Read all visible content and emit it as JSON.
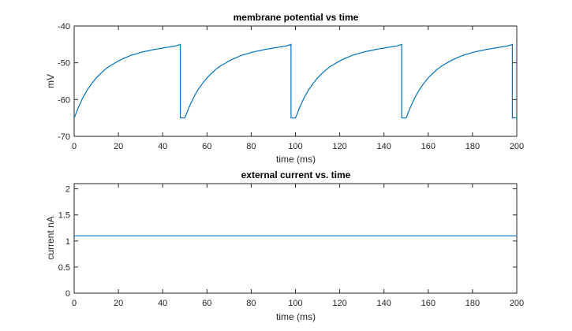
{
  "chart_data": [
    {
      "type": "line",
      "title": "membrane potential vs time",
      "xlabel": "time (ms)",
      "ylabel": "mV",
      "xlim": [
        0,
        200
      ],
      "ylim": [
        -70,
        -40
      ],
      "xticks": [
        0,
        20,
        40,
        60,
        80,
        100,
        120,
        140,
        160,
        180,
        200
      ],
      "yticks": [
        -70,
        -60,
        -50,
        -40
      ],
      "grid": false,
      "color": "#0072BD",
      "series": [
        {
          "x": [
            0,
            2,
            4,
            6,
            8,
            10,
            12,
            14,
            16,
            18,
            20,
            22,
            24,
            26,
            28,
            30,
            32,
            34,
            36,
            38,
            40,
            42,
            44,
            46,
            48,
            48,
            50,
            50,
            52,
            54,
            56,
            58,
            60,
            62,
            64,
            66,
            68,
            70,
            72,
            74,
            76,
            78,
            80,
            82,
            84,
            86,
            88,
            90,
            92,
            94,
            96,
            98,
            98,
            100,
            100,
            102,
            104,
            106,
            108,
            110,
            112,
            114,
            116,
            118,
            120,
            122,
            124,
            126,
            128,
            130,
            132,
            134,
            136,
            138,
            140,
            142,
            144,
            146,
            148,
            148,
            150,
            150,
            152,
            154,
            156,
            158,
            160,
            162,
            164,
            166,
            168,
            170,
            172,
            174,
            176,
            178,
            180,
            182,
            184,
            186,
            188,
            190,
            192,
            194,
            196,
            198,
            198,
            200
          ],
          "y": [
            -65.0,
            -62.0,
            -59.4,
            -57.3,
            -55.6,
            -54.1,
            -52.9,
            -51.8,
            -50.9,
            -50.2,
            -49.5,
            -48.9,
            -48.4,
            -47.9,
            -47.6,
            -47.2,
            -46.9,
            -46.7,
            -46.4,
            -46.2,
            -46.0,
            -45.8,
            -45.6,
            -45.4,
            -45.0,
            -65.0,
            -65.0,
            -65.0,
            -62.0,
            -59.4,
            -57.3,
            -55.6,
            -54.1,
            -52.9,
            -51.8,
            -50.9,
            -50.2,
            -49.5,
            -48.9,
            -48.4,
            -47.9,
            -47.6,
            -47.2,
            -46.9,
            -46.7,
            -46.4,
            -46.2,
            -46.0,
            -45.8,
            -45.6,
            -45.4,
            -45.0,
            -65.0,
            -65.0,
            -65.0,
            -62.0,
            -59.4,
            -57.3,
            -55.6,
            -54.1,
            -52.9,
            -51.8,
            -50.9,
            -50.2,
            -49.5,
            -48.9,
            -48.4,
            -47.9,
            -47.6,
            -47.2,
            -46.9,
            -46.7,
            -46.4,
            -46.2,
            -46.0,
            -45.8,
            -45.6,
            -45.4,
            -45.0,
            -65.0,
            -65.0,
            -65.0,
            -62.0,
            -59.4,
            -57.3,
            -55.6,
            -54.1,
            -52.9,
            -51.8,
            -50.9,
            -50.2,
            -49.5,
            -48.9,
            -48.4,
            -47.9,
            -47.6,
            -47.2,
            -46.9,
            -46.7,
            -46.4,
            -46.2,
            -46.0,
            -45.8,
            -45.6,
            -45.4,
            -45.0,
            -65.0,
            -65.0
          ]
        }
      ]
    },
    {
      "type": "line",
      "title": "external current vs. time",
      "xlabel": "time (ms)",
      "ylabel": "current nA",
      "xlim": [
        0,
        200
      ],
      "ylim": [
        0,
        2.1
      ],
      "xticks": [
        0,
        20,
        40,
        60,
        80,
        100,
        120,
        140,
        160,
        180,
        200
      ],
      "yticks": [
        0,
        0.5,
        1,
        1.5,
        2
      ],
      "grid": false,
      "color": "#0072BD",
      "series": [
        {
          "x": [
            0,
            200
          ],
          "y": [
            1.1,
            1.1
          ]
        }
      ]
    }
  ]
}
